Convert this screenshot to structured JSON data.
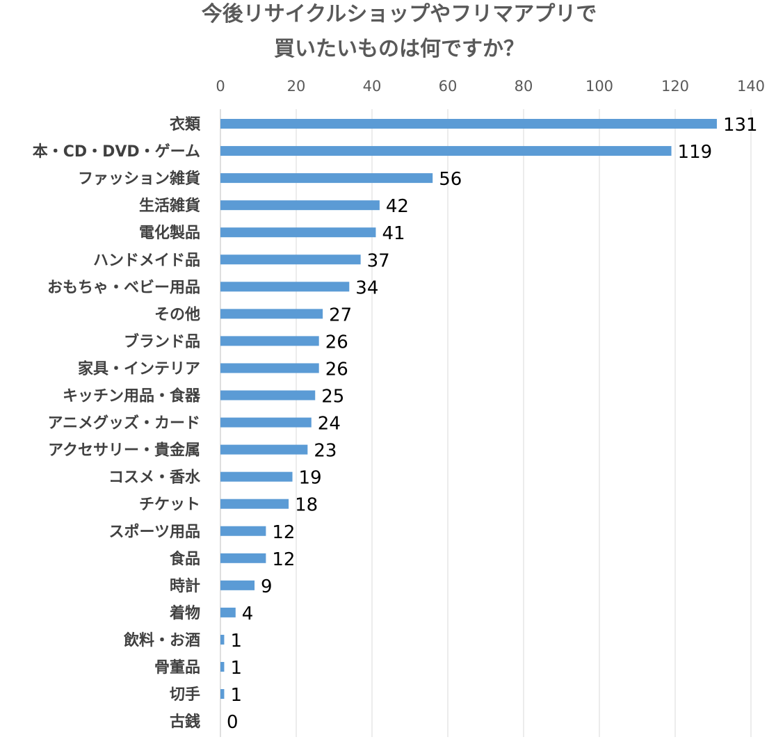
{
  "chart_data": {
    "type": "bar",
    "orientation": "horizontal",
    "title": [
      "今後リサイクルショップやフリマアプリで",
      "買いたいものは何ですか？"
    ],
    "xlabel": "",
    "ylabel": "",
    "xlim": [
      0,
      140
    ],
    "x_ticks": [
      0,
      20,
      40,
      60,
      80,
      100,
      120,
      140
    ],
    "x_axis_position": "top",
    "grid": true,
    "legend": "none",
    "bar_color": "#5b9bd5",
    "categories": [
      "衣類",
      "本・CD・DVD・ゲーム",
      "ファッション雑貨",
      "生活雑貨",
      "電化製品",
      "ハンドメイド品",
      "おもちゃ・ベビー用品",
      "その他",
      "ブランド品",
      "家具・インテリア",
      "キッチン用品・食器",
      "アニメグッズ・カード",
      "アクセサリー・貴金属",
      "コスメ・香水",
      "チケット",
      "スポーツ用品",
      "食品",
      "時計",
      "着物",
      "飲料・お酒",
      "骨董品",
      "切手",
      "古銭"
    ],
    "values": [
      131,
      119,
      56,
      42,
      41,
      37,
      34,
      27,
      26,
      26,
      25,
      24,
      23,
      19,
      18,
      12,
      12,
      9,
      4,
      1,
      1,
      1,
      0
    ]
  }
}
